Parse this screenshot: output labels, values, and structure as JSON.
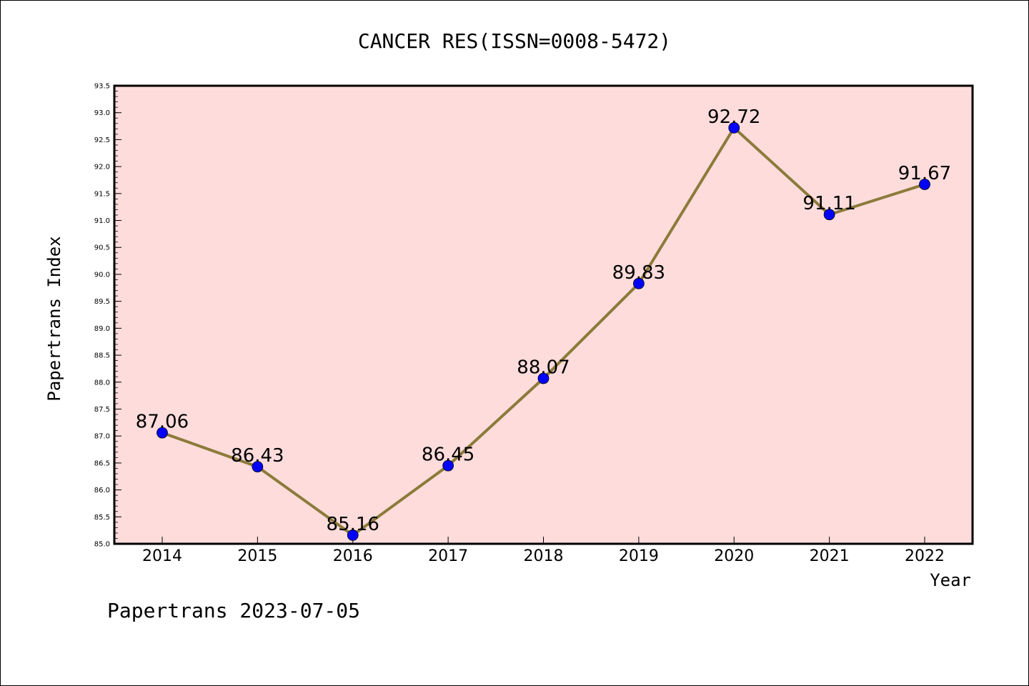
{
  "chart_data": {
    "type": "line",
    "title": "CANCER RES(ISSN=0008-5472)",
    "xlabel": "Year",
    "ylabel": "Papertrans Index",
    "categories": [
      "2014",
      "2015",
      "2016",
      "2017",
      "2018",
      "2019",
      "2020",
      "2021",
      "2022"
    ],
    "series": [
      {
        "values": [
          87.06,
          86.43,
          85.16,
          86.45,
          88.07,
          89.83,
          92.72,
          91.11,
          91.67
        ],
        "labels": [
          "87.06",
          "86.43",
          "85.16",
          "86.45",
          "88.07",
          "89.83",
          "92.72",
          "91.11",
          "91.67"
        ],
        "line_color": "#8b7b3a",
        "marker_color": "#0000ff"
      }
    ],
    "yticks": [
      "85.0",
      "85.5",
      "86.0",
      "86.5",
      "87.0",
      "87.5",
      "88.0",
      "88.5",
      "89.0",
      "89.5",
      "90.0",
      "90.5",
      "91.0",
      "91.5",
      "92.0",
      "92.5",
      "93.0",
      "93.5"
    ],
    "ylim": [
      85.0,
      93.5
    ],
    "grid": false,
    "plot_background": "#ffdcdc"
  },
  "footer": "Papertrans 2023-07-05"
}
